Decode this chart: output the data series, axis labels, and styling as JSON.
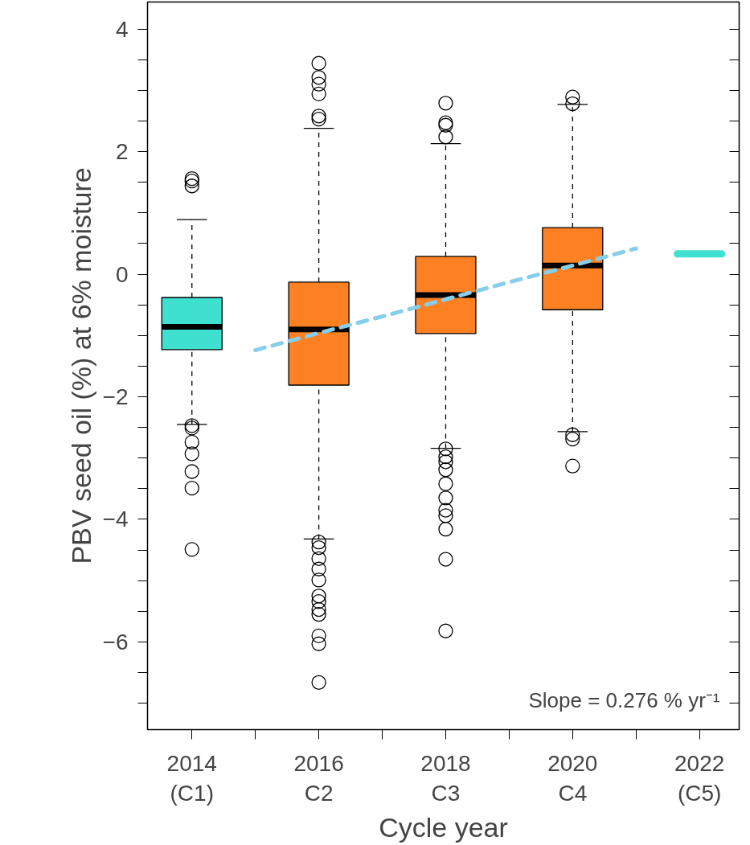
{
  "chart_data": {
    "type": "box",
    "xlabel": "Cycle year",
    "ylabel": "PBV seed oil (%) at 6% moisture",
    "annotations": [
      "Slope = 0.276 % yr⁻¹"
    ],
    "categories": [
      "2014\n(C1)",
      null,
      "2016\nC2",
      null,
      "2018\nC3",
      null,
      "2020\nC4",
      null,
      "2022\n(C5)"
    ],
    "ylim": [
      -7.43,
      4.44
    ],
    "yticks": [
      {
        "value": -7,
        "label": null
      },
      {
        "value": -6.5,
        "label": null
      },
      -6,
      {
        "value": -5.5,
        "label": null
      },
      {
        "value": -5,
        "label": null
      },
      {
        "value": -4.5,
        "label": null
      },
      -4,
      {
        "value": -3.5,
        "label": null
      },
      {
        "value": -3,
        "label": null
      },
      {
        "value": -2.5,
        "label": null
      },
      -2,
      {
        "value": -1.5,
        "label": null
      },
      {
        "value": -1,
        "label": null
      },
      {
        "value": -0.5,
        "label": null
      },
      0,
      {
        "value": 0.5,
        "label": null
      },
      {
        "value": 1,
        "label": null
      },
      {
        "value": 1.5,
        "label": null
      },
      2,
      {
        "value": 2.5,
        "label": null
      },
      {
        "value": 3,
        "label": null
      },
      {
        "value": 3.5,
        "label": null
      },
      4
    ],
    "series": [
      {
        "marker": "circle",
        "colors": [
          "#40e0d0",
          null,
          "#fd8023",
          null,
          "#fd8023",
          null,
          "#fd8023",
          null,
          "#40e0d0"
        ],
        "boxes": [
          {
            "low": -2.45,
            "q1": -1.23,
            "median": -0.86,
            "q3": -0.38,
            "high": 0.89,
            "outliers": [
              1.56,
              1.52,
              1.44,
              -2.47,
              -2.51,
              -2.74,
              -2.93,
              -3.22,
              -3.49,
              -4.49
            ]
          },
          null,
          {
            "low": -4.32,
            "q1": -1.81,
            "median": -0.9,
            "q3": -0.13,
            "high": 2.38,
            "outliers": [
              3.44,
              3.21,
              3.1,
              2.94,
              2.58,
              2.53,
              -4.37,
              -4.46,
              -4.64,
              -4.81,
              -4.99,
              -5.25,
              -5.34,
              -5.47,
              -5.55,
              -5.9,
              -6.03,
              -6.66
            ]
          },
          null,
          {
            "low": -2.84,
            "q1": -0.97,
            "median": -0.34,
            "q3": 0.29,
            "high": 2.13,
            "outliers": [
              2.79,
              2.47,
              2.43,
              2.24,
              -2.85,
              -2.98,
              -3.06,
              -3.19,
              -3.42,
              -3.65,
              -3.85,
              -3.94,
              -4.16,
              -4.65,
              -5.82
            ]
          },
          null,
          {
            "low": -2.57,
            "q1": -0.58,
            "median": 0.14,
            "q3": 0.76,
            "high": 2.77,
            "outliers": [
              2.89,
              2.78,
              -2.62,
              -2.69,
              -3.13
            ]
          },
          null,
          {
            "low": 0.33,
            "q1": 0.33,
            "median": 0.33,
            "q3": 0.33,
            "high": 0.33
          }
        ]
      },
      {
        "type": "line",
        "values": [
          null,
          -1.24,
          -0.96,
          -0.69,
          -0.41,
          -0.13,
          0.14,
          0.42,
          null
        ],
        "color": "#87ceeb",
        "line_style": "dashed"
      }
    ]
  }
}
